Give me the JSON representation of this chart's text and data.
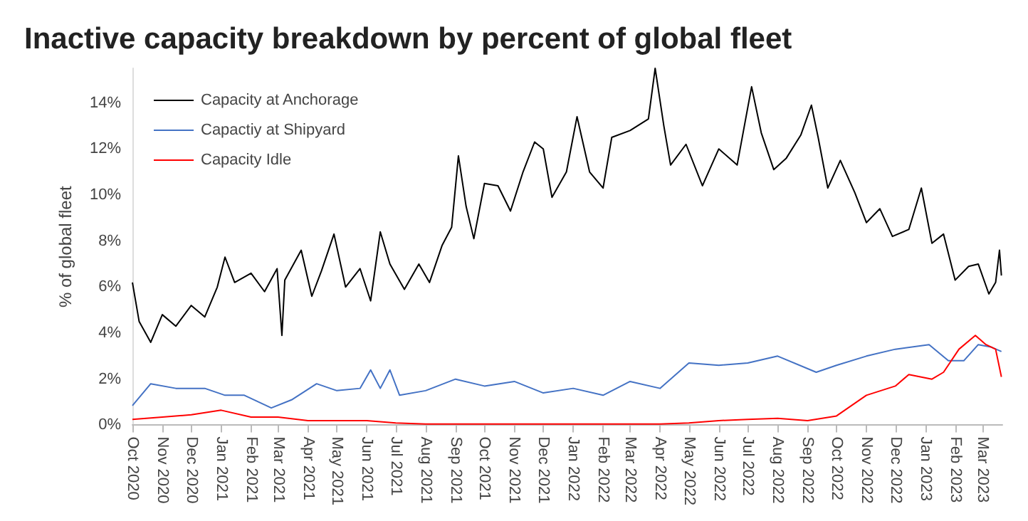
{
  "chart_data": {
    "type": "line",
    "title": "Inactive capacity breakdown by percent of global fleet",
    "ylabel": "% of global fleet",
    "xlim": [
      "2020-10-01",
      "2023-03-22"
    ],
    "ylim": [
      0,
      15.5
    ],
    "xticks": [
      {
        "value": "2020-10-01",
        "label": "Oct 2020"
      },
      {
        "value": "2020-11-01",
        "label": "Nov 2020"
      },
      {
        "value": "2020-12-01",
        "label": "Dec 2020"
      },
      {
        "value": "2021-01-01",
        "label": "Jan 2021"
      },
      {
        "value": "2021-02-01",
        "label": "Feb 2021"
      },
      {
        "value": "2021-03-01",
        "label": "Mar 2021"
      },
      {
        "value": "2021-04-01",
        "label": "Apr 2021"
      },
      {
        "value": "2021-05-01",
        "label": "May 2021"
      },
      {
        "value": "2021-06-01",
        "label": "Jun 2021"
      },
      {
        "value": "2021-07-01",
        "label": "Jul 2021"
      },
      {
        "value": "2021-08-01",
        "label": "Aug 2021"
      },
      {
        "value": "2021-09-01",
        "label": "Sep 2021"
      },
      {
        "value": "2021-10-01",
        "label": "Oct 2021"
      },
      {
        "value": "2021-11-01",
        "label": "Nov 2021"
      },
      {
        "value": "2021-12-01",
        "label": "Dec 2021"
      },
      {
        "value": "2022-01-01",
        "label": "Jan 2022"
      },
      {
        "value": "2022-02-01",
        "label": "Feb 2022"
      },
      {
        "value": "2022-03-01",
        "label": "Mar 2022"
      },
      {
        "value": "2022-04-01",
        "label": "Apr 2022"
      },
      {
        "value": "2022-05-01",
        "label": "May 2022"
      },
      {
        "value": "2022-06-01",
        "label": "Jun 2022"
      },
      {
        "value": "2022-07-01",
        "label": "Jul 2022"
      },
      {
        "value": "2022-08-01",
        "label": "Aug 2022"
      },
      {
        "value": "2022-09-01",
        "label": "Sep 2022"
      },
      {
        "value": "2022-10-01",
        "label": "Oct 2022"
      },
      {
        "value": "2022-11-01",
        "label": "Nov 2022"
      },
      {
        "value": "2022-12-01",
        "label": "Dec 2022"
      },
      {
        "value": "2023-01-01",
        "label": "Jan 2023"
      },
      {
        "value": "2023-02-01",
        "label": "Feb 2023"
      },
      {
        "value": "2023-03-01",
        "label": "Mar 2023"
      }
    ],
    "yticks": [
      {
        "value": 0,
        "label": "0%"
      },
      {
        "value": 2,
        "label": "2%"
      },
      {
        "value": 4,
        "label": "4%"
      },
      {
        "value": 6,
        "label": "6%"
      },
      {
        "value": 8,
        "label": "8%"
      },
      {
        "value": 10,
        "label": "10%"
      },
      {
        "value": 12,
        "label": "12%"
      },
      {
        "value": 14,
        "label": "14%"
      }
    ],
    "grid": false,
    "legend": "top left",
    "marker": "none",
    "line_style": "solid",
    "series": [
      {
        "name": "Capacity at Anchorage",
        "color": "#000000",
        "x": [
          "2020-10-01",
          "2020-10-08",
          "2020-10-20",
          "2020-11-01",
          "2020-11-15",
          "2020-12-01",
          "2020-12-15",
          "2020-12-28",
          "2021-01-05",
          "2021-01-15",
          "2021-02-01",
          "2021-02-15",
          "2021-02-28",
          "2021-03-05",
          "2021-03-08",
          "2021-03-25",
          "2021-04-05",
          "2021-04-15",
          "2021-04-28",
          "2021-05-10",
          "2021-05-25",
          "2021-06-05",
          "2021-06-15",
          "2021-06-25",
          "2021-07-10",
          "2021-07-25",
          "2021-08-05",
          "2021-08-18",
          "2021-08-28",
          "2021-09-04",
          "2021-09-12",
          "2021-09-20",
          "2021-10-01",
          "2021-10-15",
          "2021-10-28",
          "2021-11-10",
          "2021-11-22",
          "2021-12-01",
          "2021-12-10",
          "2021-12-25",
          "2022-01-05",
          "2022-01-18",
          "2022-02-01",
          "2022-02-10",
          "2022-03-01",
          "2022-03-20",
          "2022-03-27",
          "2022-04-05",
          "2022-04-12",
          "2022-04-28",
          "2022-05-15",
          "2022-06-01",
          "2022-06-20",
          "2022-07-05",
          "2022-07-15",
          "2022-07-28",
          "2022-08-10",
          "2022-08-25",
          "2022-09-05",
          "2022-09-12",
          "2022-09-22",
          "2022-10-05",
          "2022-10-20",
          "2022-11-01",
          "2022-11-15",
          "2022-11-28",
          "2022-12-15",
          "2022-12-28",
          "2023-01-08",
          "2023-01-20",
          "2023-02-01",
          "2023-02-15",
          "2023-02-25",
          "2023-03-08",
          "2023-03-15",
          "2023-03-19",
          "2023-03-21"
        ],
        "values": [
          6.2,
          4.5,
          3.6,
          4.8,
          4.3,
          5.2,
          4.7,
          6.0,
          7.3,
          6.2,
          6.6,
          5.8,
          6.8,
          3.9,
          6.3,
          7.6,
          5.6,
          6.7,
          8.3,
          6.0,
          6.8,
          5.4,
          8.4,
          7.0,
          5.9,
          7.0,
          6.2,
          7.8,
          8.6,
          11.7,
          9.5,
          8.1,
          10.5,
          10.4,
          9.3,
          11.0,
          12.3,
          12.0,
          9.9,
          11.0,
          13.4,
          11.0,
          10.3,
          12.5,
          12.8,
          13.3,
          15.5,
          13.0,
          11.3,
          12.2,
          10.4,
          12.0,
          11.3,
          14.7,
          12.7,
          11.1,
          11.6,
          12.6,
          13.9,
          12.5,
          10.3,
          11.5,
          10.1,
          8.8,
          9.4,
          8.2,
          8.5,
          10.3,
          7.9,
          8.3,
          6.3,
          6.9,
          7.0,
          5.7,
          6.2,
          7.6,
          6.5
        ]
      },
      {
        "name": "Capactiy at Shipyard",
        "color": "#4472c4",
        "x": [
          "2020-10-01",
          "2020-10-20",
          "2020-11-15",
          "2020-12-15",
          "2021-01-05",
          "2021-01-25",
          "2021-02-22",
          "2021-03-15",
          "2021-04-10",
          "2021-05-01",
          "2021-05-25",
          "2021-06-05",
          "2021-06-15",
          "2021-06-25",
          "2021-07-05",
          "2021-08-01",
          "2021-09-01",
          "2021-10-01",
          "2021-11-01",
          "2021-12-01",
          "2022-01-01",
          "2022-02-01",
          "2022-03-01",
          "2022-04-01",
          "2022-05-01",
          "2022-06-01",
          "2022-07-01",
          "2022-08-01",
          "2022-09-10",
          "2022-10-01",
          "2022-11-01",
          "2022-12-01",
          "2023-01-05",
          "2023-01-25",
          "2023-02-10",
          "2023-02-25",
          "2023-03-10",
          "2023-03-21"
        ],
        "values": [
          0.85,
          1.8,
          1.6,
          1.6,
          1.3,
          1.3,
          0.75,
          1.1,
          1.8,
          1.5,
          1.6,
          2.4,
          1.6,
          2.4,
          1.3,
          1.5,
          2.0,
          1.7,
          1.9,
          1.4,
          1.6,
          1.3,
          1.9,
          1.6,
          2.7,
          2.6,
          2.7,
          3.0,
          2.3,
          2.6,
          3.0,
          3.3,
          3.5,
          2.8,
          2.8,
          3.5,
          3.4,
          3.2
        ]
      },
      {
        "name": "Capacity Idle",
        "color": "#ff0000",
        "x": [
          "2020-10-01",
          "2020-11-01",
          "2020-12-01",
          "2021-01-01",
          "2021-02-01",
          "2021-03-01",
          "2021-04-01",
          "2021-06-01",
          "2021-07-01",
          "2021-08-01",
          "2022-04-01",
          "2022-05-01",
          "2022-06-01",
          "2022-07-01",
          "2022-08-01",
          "2022-09-01",
          "2022-10-01",
          "2022-11-01",
          "2022-12-01",
          "2022-12-15",
          "2023-01-08",
          "2023-01-20",
          "2023-02-05",
          "2023-02-22",
          "2023-03-05",
          "2023-03-15",
          "2023-03-21"
        ],
        "values": [
          0.25,
          0.35,
          0.45,
          0.65,
          0.35,
          0.35,
          0.2,
          0.2,
          0.1,
          0.05,
          0.05,
          0.1,
          0.2,
          0.25,
          0.3,
          0.2,
          0.4,
          1.3,
          1.7,
          2.2,
          2.0,
          2.3,
          3.3,
          3.9,
          3.5,
          3.3,
          2.1
        ]
      }
    ]
  }
}
